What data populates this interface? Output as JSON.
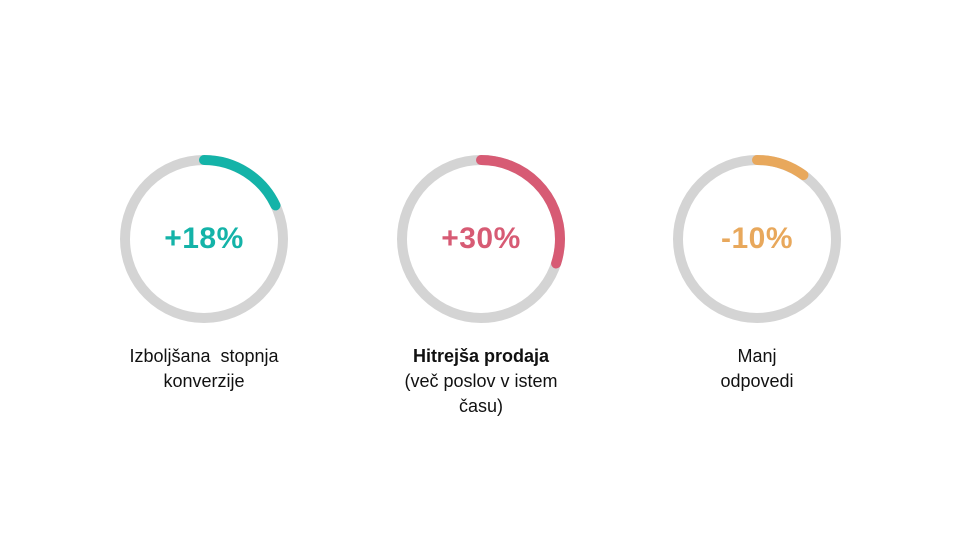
{
  "colors": {
    "track": "#d4d4d4"
  },
  "metrics": [
    {
      "value": "+18%",
      "progress": 0.18,
      "color": "#14b3a8",
      "label_lines": [
        "Izboljšana stopnja",
        "konverzije"
      ]
    },
    {
      "value": "+30%",
      "progress": 0.3,
      "color": "#d75b74",
      "label_lines": [
        "Hitrejša prodaja",
        "(več poslov v istem",
        "času)"
      ]
    },
    {
      "value": "-10%",
      "progress": 0.1,
      "color": "#e8a85c",
      "label_lines": [
        "Manj",
        "odpovedi"
      ]
    }
  ]
}
